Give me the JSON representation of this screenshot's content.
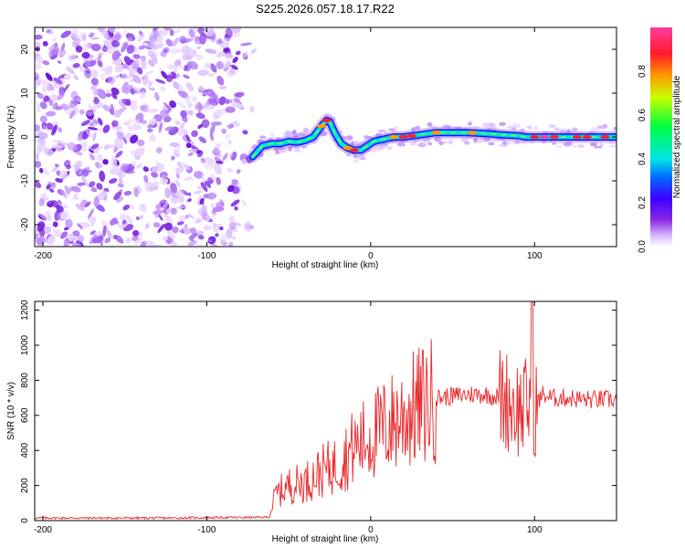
{
  "figure_title": "S225.2026.057.18.17.R22",
  "chart_data": [
    {
      "type": "heatmap",
      "xlabel": "Height of straight line (km)",
      "ylabel": "Frequency (Hz)",
      "xlim": [
        -205,
        150
      ],
      "ylim": [
        -25,
        25
      ],
      "xticks": [
        -200,
        -100,
        0,
        100
      ],
      "yticks": [
        -20,
        -10,
        0,
        10,
        20
      ],
      "noise_region_x": [
        -205,
        -70
      ],
      "ridge": {
        "x": [
          -72,
          -66,
          -60,
          -55,
          -50,
          -45,
          -40,
          -35,
          -30,
          -27,
          -25,
          -22,
          -18,
          -14,
          -10,
          -6,
          -2,
          2,
          8,
          14,
          20,
          30,
          40,
          50,
          60,
          70,
          80,
          90,
          95,
          100,
          110,
          120,
          130,
          140,
          150
        ],
        "y": [
          -4.5,
          -2.0,
          -1.5,
          -1.5,
          -1.0,
          -1.2,
          -0.8,
          0.0,
          2.5,
          3.8,
          3.5,
          1.0,
          -1.5,
          -2.5,
          -3.0,
          -3.0,
          -2.0,
          -1.0,
          -0.5,
          0.0,
          0.0,
          0.5,
          1.0,
          1.0,
          1.0,
          0.8,
          0.5,
          0.3,
          0.0,
          0.0,
          0.0,
          0.0,
          0.0,
          0.0,
          0.0
        ]
      },
      "colorbar": {
        "label": "Normalized spectral amplitude",
        "ticks": [
          0.0,
          0.2,
          0.4,
          0.6,
          0.8
        ],
        "range": [
          0,
          1
        ]
      }
    },
    {
      "type": "line",
      "xlabel": "Height of straight line (km)",
      "ylabel": "SNR (10 * v/v)",
      "xlim": [
        -205,
        150
      ],
      "ylim": [
        0,
        1250
      ],
      "xticks": [
        -200,
        -100,
        0,
        100
      ],
      "yticks": [
        0,
        200,
        400,
        600,
        800,
        1000,
        1200
      ],
      "series": [
        {
          "name": "SNR",
          "color": "#e8282a",
          "x": [
            -205,
            -180,
            -150,
            -120,
            -90,
            -70,
            -62,
            -58,
            -50,
            -40,
            -30,
            -20,
            -10,
            0,
            10,
            20,
            30,
            40,
            50,
            60,
            70,
            80,
            85,
            90,
            95,
            98,
            100,
            105,
            110,
            120,
            130,
            140,
            150
          ],
          "y": [
            15,
            15,
            15,
            15,
            18,
            18,
            20,
            150,
            200,
            220,
            280,
            320,
            420,
            480,
            540,
            600,
            650,
            700,
            710,
            720,
            720,
            700,
            680,
            640,
            640,
            700,
            650,
            720,
            700,
            700,
            690,
            690,
            690
          ]
        }
      ]
    }
  ]
}
